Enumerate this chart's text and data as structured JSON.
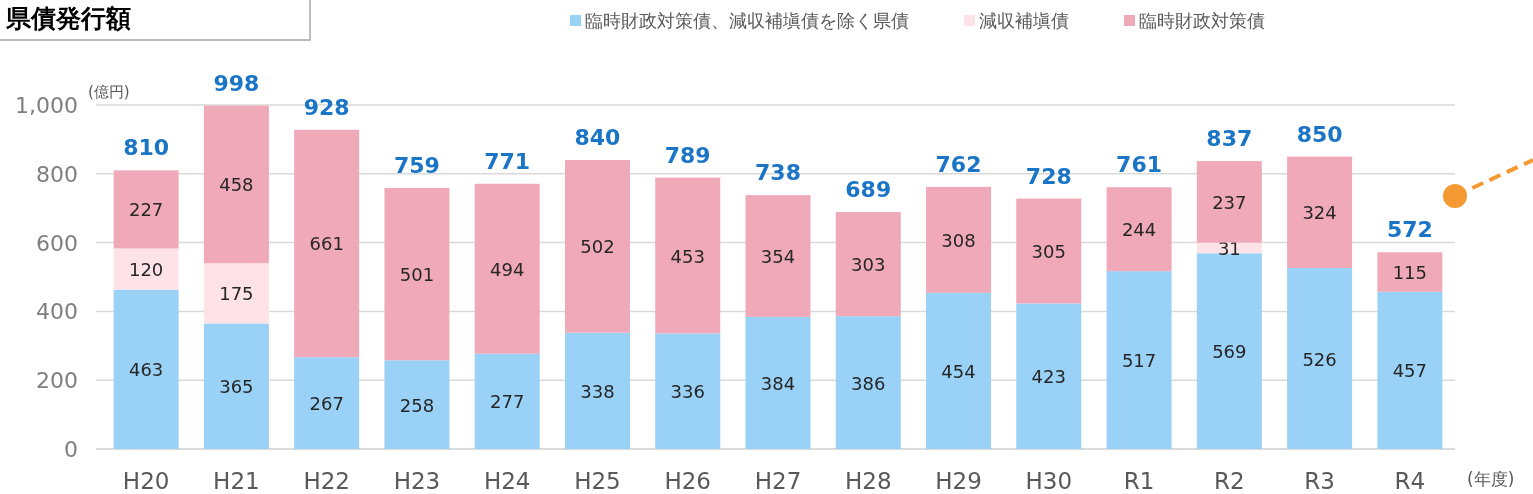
{
  "chart_data": {
    "type": "bar",
    "title": "県債発行額",
    "ylabel": "(億円)",
    "xlabel": "(年度)",
    "stacked": true,
    "categories": [
      "H20",
      "H21",
      "H22",
      "H23",
      "H24",
      "H25",
      "H26",
      "H27",
      "H28",
      "H29",
      "H30",
      "R1",
      "R2",
      "R3",
      "R4"
    ],
    "series": [
      {
        "name": "臨時財政対策債、減収補塡債を除く県債",
        "color": "#99d1f7",
        "values": [
          463,
          365,
          267,
          258,
          277,
          338,
          336,
          384,
          386,
          454,
          423,
          517,
          569,
          526,
          457
        ]
      },
      {
        "name": "減収補塡債",
        "color": "#fde3e8",
        "values": [
          120,
          175,
          null,
          null,
          null,
          null,
          null,
          null,
          null,
          null,
          null,
          null,
          31,
          null,
          null
        ]
      },
      {
        "name": "臨時財政対策債",
        "color": "#f0a9b9",
        "values": [
          227,
          458,
          661,
          501,
          494,
          502,
          453,
          354,
          303,
          308,
          305,
          244,
          237,
          324,
          115
        ]
      }
    ],
    "totals": [
      "810",
      "998",
      "928",
      "759",
      "771",
      "840",
      "789",
      "738",
      "689",
      "762",
      "728",
      "761",
      "837",
      "850",
      "572"
    ],
    "data_labels": true,
    "ylim": [
      0,
      1000
    ],
    "yticks": [
      0,
      200,
      400,
      600,
      800,
      {
        "value": 1000,
        "label": "1,000"
      }
    ],
    "grid": "y",
    "legend": "top right"
  }
}
